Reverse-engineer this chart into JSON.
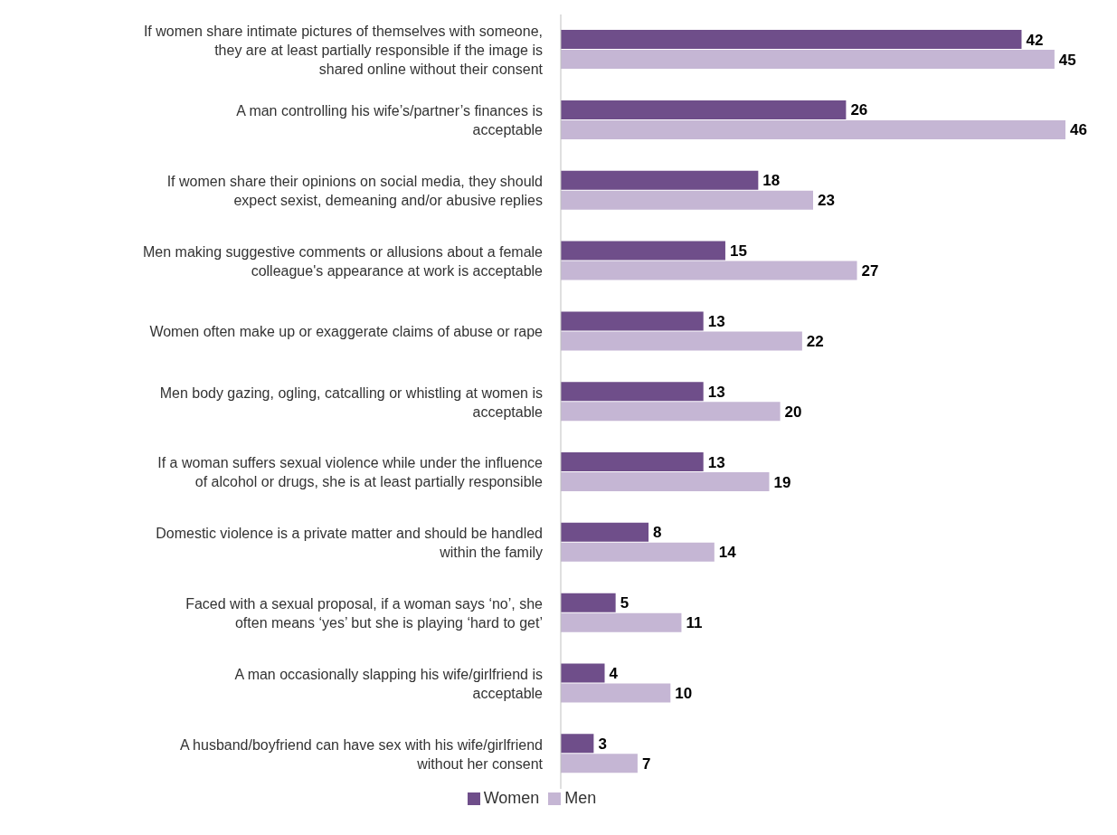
{
  "chart_data": {
    "type": "bar",
    "orientation": "horizontal",
    "categories": [
      "If women share intimate pictures of themselves with someone, they are at least partially responsible if the image is shared online without their consent",
      "A man controlling his wife’s/partner’s finances is acceptable",
      "If women share their opinions on social media, they should expect sexist, demeaning and/or abusive replies",
      "Men making suggestive comments or allusions about a female colleague's appearance at work is acceptable",
      "Women often make up or exaggerate claims of abuse or rape",
      "Men body gazing, ogling, catcalling or whistling at women is acceptable",
      "If a woman suffers sexual violence while under the influence of alcohol or drugs, she is at least partially responsible",
      "Domestic violence is a private matter and should be handled within the family",
      "Faced with a sexual proposal, if a woman says ‘no’, she often means ‘yes’ but she is playing ‘hard to get’",
      "A man occasionally slapping his wife/girlfriend is acceptable",
      "A husband/boyfriend can have sex with his wife/girlfriend without her consent"
    ],
    "series": [
      {
        "name": "Women",
        "color": "#6f4e8a",
        "values": [
          42,
          26,
          18,
          15,
          13,
          13,
          13,
          8,
          5,
          4,
          3
        ]
      },
      {
        "name": "Men",
        "color": "#c5b6d4",
        "values": [
          45,
          46,
          23,
          27,
          22,
          20,
          19,
          14,
          11,
          10,
          7
        ]
      }
    ],
    "data_labels": true,
    "legend": "bottom"
  }
}
